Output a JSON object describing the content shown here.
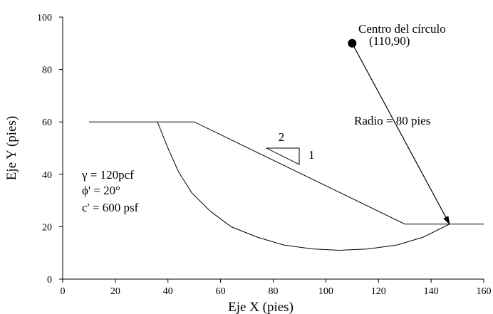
{
  "chart_data": {
    "type": "diagram",
    "xlabel": "Eje X (pies)",
    "ylabel": "Eje Y (pies)",
    "xlim": [
      0,
      160
    ],
    "ylim": [
      0,
      100
    ],
    "xticks": [
      0,
      20,
      40,
      60,
      80,
      100,
      120,
      140,
      160
    ],
    "yticks": [
      0,
      20,
      40,
      60,
      80,
      100
    ],
    "slope_profile": [
      [
        10,
        60
      ],
      [
        50,
        60
      ],
      [
        130,
        21
      ],
      [
        160,
        21
      ]
    ],
    "failure_arc": [
      [
        36,
        60
      ],
      [
        40,
        50
      ],
      [
        44,
        41
      ],
      [
        49,
        33
      ],
      [
        56,
        26
      ],
      [
        64,
        20
      ],
      [
        74,
        16
      ],
      [
        84,
        13
      ],
      [
        95,
        11.5
      ],
      [
        105,
        11
      ],
      [
        116,
        11.5
      ],
      [
        127,
        13
      ],
      [
        137,
        16
      ],
      [
        147,
        21
      ]
    ],
    "center": {
      "x": 110,
      "y": 90
    },
    "radius_line_end": {
      "x": 147,
      "y": 21
    },
    "center_label_1": "Centro del círculo",
    "center_label_2": "(110,90)",
    "radius_label": "Radio = 80 pies",
    "slope_ratio": {
      "horizontal": "2",
      "vertical": "1"
    },
    "parameters": [
      "γ  = 120pcf",
      "ϕ' = 20°",
      "c' = 600 psf"
    ]
  }
}
